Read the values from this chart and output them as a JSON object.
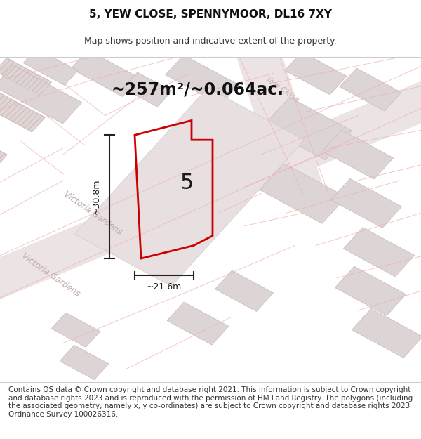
{
  "title": "5, YEW CLOSE, SPENNYMOOR, DL16 7XY",
  "subtitle": "Map shows position and indicative extent of the property.",
  "area_text": "~257m²/~0.064ac.",
  "dim_width": "~21.6m",
  "dim_height": "~30.8m",
  "plot_label": "5",
  "footer_text": "Contains OS data © Crown copyright and database right 2021. This information is subject to Crown copyright and database rights 2023 and is reproduced with the permission of HM Land Registry. The polygons (including the associated geometry, namely x, y co-ordinates) are subject to Crown copyright and database rights 2023 Ordnance Survey 100026316.",
  "map_bg": "#ede8e8",
  "title_fontsize": 11,
  "subtitle_fontsize": 9,
  "area_fontsize": 18,
  "footer_fontsize": 7.5,
  "red_color": "#cc0000",
  "building_color": "#ddd5d5",
  "building_edge": "#c8b8b8",
  "light_red": "#f0b0b0",
  "road_color": "#ece4e4",
  "street_label_color": "#c0a8a8"
}
